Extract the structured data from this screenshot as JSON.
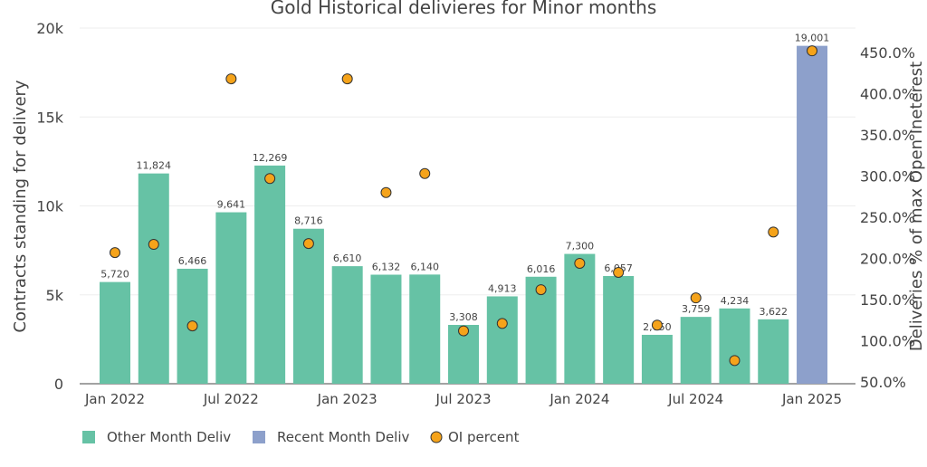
{
  "chart_data": {
    "type": "bar",
    "title": "Gold Historical delivieres for Minor months",
    "ylabel": "Contracts standing for delivery",
    "y2label": "Deliveries % of max Open Ineterest",
    "ylim": [
      0,
      20000
    ],
    "y2lim": [
      50,
      460
    ],
    "yticks": [
      "0",
      "5k",
      "10k",
      "15k",
      "20k"
    ],
    "y2ticks": [
      "50.0%",
      "100.0%",
      "150.0%",
      "200.0%",
      "250.0%",
      "300.0%",
      "350.0%",
      "400.0%",
      "450.0%"
    ],
    "xticks": [
      "Jan 2022",
      "Jul 2022",
      "Jan 2023",
      "Jul 2023",
      "Jan 2024",
      "Jul 2024",
      "Jan 2025"
    ],
    "grid": true,
    "legend_position": "bottom",
    "x": [
      "2022-01",
      "2022-03",
      "2022-05",
      "2022-07",
      "2022-09",
      "2022-11",
      "2023-01",
      "2023-03",
      "2023-05",
      "2023-07",
      "2023-09",
      "2023-11",
      "2024-01",
      "2024-03",
      "2024-05",
      "2024-07",
      "2024-09",
      "2024-11",
      "2025-01"
    ],
    "series": [
      {
        "name": "Other Month Deliv",
        "color": "#66c2a5",
        "values": [
          5720,
          11824,
          6466,
          9641,
          12269,
          8716,
          6610,
          6132,
          6140,
          3308,
          4913,
          6016,
          7300,
          6057,
          2750,
          3759,
          4234,
          3622,
          null
        ],
        "labels": [
          "5,720",
          "11,824",
          "6,466",
          "9,641",
          "12,269",
          "8,716",
          "6,610",
          "6,132",
          "6,140",
          "3,308",
          "4,913",
          "6,016",
          "7,300",
          "6,057",
          "2,750",
          "3,759",
          "4,234",
          "3,622",
          null
        ]
      },
      {
        "name": "Recent Month Deliv",
        "color": "#8da0cb",
        "values": [
          null,
          null,
          null,
          null,
          null,
          null,
          null,
          null,
          null,
          null,
          null,
          null,
          null,
          null,
          null,
          null,
          null,
          null,
          19001
        ],
        "labels": [
          null,
          null,
          null,
          null,
          null,
          null,
          null,
          null,
          null,
          null,
          null,
          null,
          null,
          null,
          null,
          null,
          null,
          null,
          "19,001"
        ]
      },
      {
        "name": "OI percent",
        "color": "#f5a31a",
        "axis": "right",
        "values": [
          207,
          217,
          118,
          418,
          297,
          218,
          418,
          280,
          303,
          112,
          121,
          162,
          194,
          183,
          119,
          152,
          76,
          232,
          452
        ]
      }
    ]
  }
}
